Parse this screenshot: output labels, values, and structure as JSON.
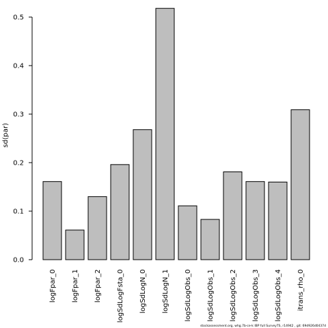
{
  "chart_data": {
    "type": "bar",
    "title": "",
    "xlabel": "",
    "ylabel": "sd(par)",
    "ylim": [
      0,
      0.52
    ],
    "yticks": [
      0.0,
      0.1,
      0.2,
      0.3,
      0.4,
      0.5
    ],
    "ytick_labels": [
      "0.0",
      "0.1",
      "0.2",
      "0.3",
      "0.4",
      "0.5"
    ],
    "grid": false,
    "legend": "none",
    "bar_color": "#bebebe",
    "categories": [
      "logFpar_0",
      "logFpar_1",
      "logFpar_2",
      "logSdLogFsta_0",
      "logSdLogN_0",
      "logSdLogN_1",
      "logSdLogObs_0",
      "logSdLogObs_1",
      "logSdLogObs_2",
      "logSdLogObs_3",
      "logSdLogObs_4",
      "itrans_rho_0"
    ],
    "values": [
      0.161,
      0.061,
      0.13,
      0.196,
      0.268,
      0.518,
      0.111,
      0.083,
      0.181,
      0.161,
      0.16,
      0.309
    ]
  },
  "footer": "stockassessment.org, whg.7b-ce-k IBP full SurveyTS, r14942 , git: 69d926d0437d"
}
